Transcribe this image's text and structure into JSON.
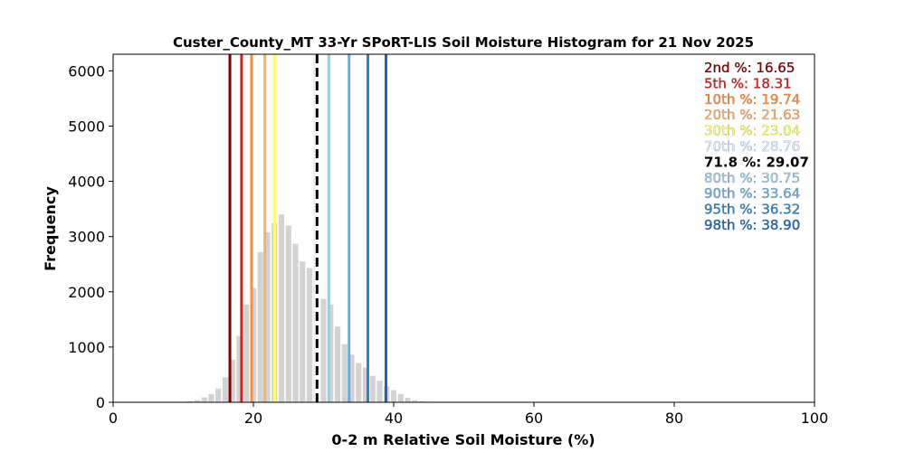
{
  "chart_data": {
    "type": "bar",
    "title": "Custer_County_MT 33-Yr SPoRT-LIS Soil Moisture Histogram for 21 Nov 2025",
    "xlabel": "0-2 m Relative Soil Moisture (%)",
    "ylabel": "Frequency",
    "xlim": [
      0,
      100
    ],
    "ylim": [
      0,
      6300
    ],
    "xticks": [
      0,
      20,
      40,
      60,
      80,
      100
    ],
    "yticks": [
      0,
      1000,
      2000,
      3000,
      4000,
      5000,
      6000
    ],
    "bar_color": "#d3d3d3",
    "bin_width": 1,
    "bins": [
      {
        "x": 11,
        "count": 20
      },
      {
        "x": 12,
        "count": 40
      },
      {
        "x": 13,
        "count": 90
      },
      {
        "x": 14,
        "count": 150
      },
      {
        "x": 15,
        "count": 250
      },
      {
        "x": 16,
        "count": 450
      },
      {
        "x": 17,
        "count": 770
      },
      {
        "x": 18,
        "count": 1200
      },
      {
        "x": 19,
        "count": 1770
      },
      {
        "x": 20,
        "count": 2070
      },
      {
        "x": 21,
        "count": 2720
      },
      {
        "x": 22,
        "count": 3080
      },
      {
        "x": 23,
        "count": 3240
      },
      {
        "x": 24,
        "count": 3400
      },
      {
        "x": 25,
        "count": 3200
      },
      {
        "x": 26,
        "count": 2870
      },
      {
        "x": 27,
        "count": 2550
      },
      {
        "x": 28,
        "count": 2430
      },
      {
        "x": 29,
        "count": 2200
      },
      {
        "x": 30,
        "count": 1870
      },
      {
        "x": 31,
        "count": 1770
      },
      {
        "x": 32,
        "count": 1370
      },
      {
        "x": 33,
        "count": 1050
      },
      {
        "x": 34,
        "count": 860
      },
      {
        "x": 35,
        "count": 710
      },
      {
        "x": 36,
        "count": 630
      },
      {
        "x": 37,
        "count": 480
      },
      {
        "x": 38,
        "count": 390
      },
      {
        "x": 39,
        "count": 290
      },
      {
        "x": 40,
        "count": 220
      },
      {
        "x": 41,
        "count": 150
      },
      {
        "x": 42,
        "count": 80
      },
      {
        "x": 43,
        "count": 40
      },
      {
        "x": 44,
        "count": 20
      },
      {
        "x": 45,
        "count": 10
      },
      {
        "x": 46,
        "count": 5
      }
    ],
    "percentiles": [
      {
        "label": "2nd %",
        "value": "16.65",
        "x": 16.65,
        "color": "#800000",
        "dashed": false
      },
      {
        "label": "5th %",
        "value": "18.31",
        "x": 18.31,
        "color": "#e31a1c",
        "dashed": false
      },
      {
        "label": "10th %",
        "value": "19.74",
        "x": 19.74,
        "color": "#fd8d3c",
        "dashed": false
      },
      {
        "label": "20th %",
        "value": "21.63",
        "x": 21.63,
        "color": "#fdae6b",
        "dashed": false
      },
      {
        "label": "30th %",
        "value": "23.04",
        "x": 23.04,
        "color": "#ffff66",
        "dashed": false
      },
      {
        "label": "70th %",
        "value": "28.76",
        "x": 28.76,
        "color": "#deebf7",
        "dashed": false
      },
      {
        "label": "71.8 %",
        "value": "29.07",
        "x": 29.07,
        "color": "#000000",
        "dashed": true
      },
      {
        "label": "80th %",
        "value": "30.75",
        "x": 30.75,
        "color": "#9ecae1",
        "dashed": false
      },
      {
        "label": "90th %",
        "value": "33.64",
        "x": 33.64,
        "color": "#6baed6",
        "dashed": false
      },
      {
        "label": "95th %",
        "value": "36.32",
        "x": 36.32,
        "color": "#3182bd",
        "dashed": false
      },
      {
        "label": "98th %",
        "value": "38.90",
        "x": 38.9,
        "color": "#2166ac",
        "dashed": false
      }
    ]
  }
}
